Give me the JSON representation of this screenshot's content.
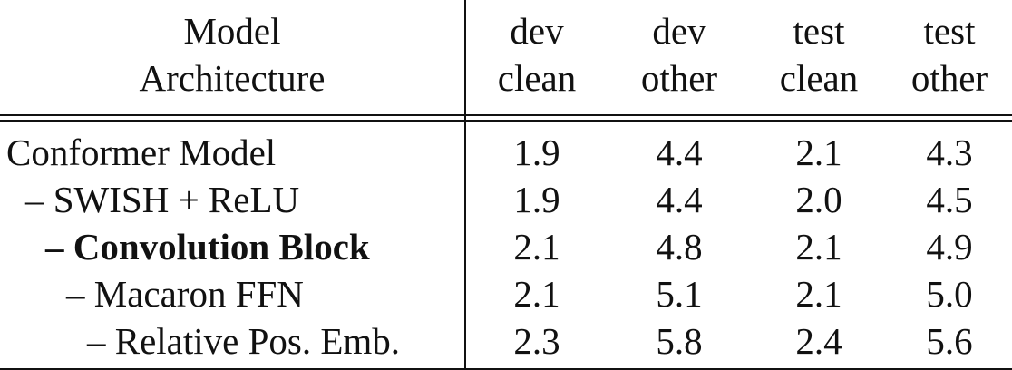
{
  "table": {
    "headers": [
      {
        "line1": "Model",
        "line2": "Architecture"
      },
      {
        "line1": "dev",
        "line2": "clean"
      },
      {
        "line1": "dev",
        "line2": "other"
      },
      {
        "line1": "test",
        "line2": "clean"
      },
      {
        "line1": "test",
        "line2": "other"
      }
    ],
    "rows": [
      {
        "name": "Conformer Model",
        "bold": false,
        "values": [
          "1.9",
          "4.4",
          "2.1",
          "4.3"
        ]
      },
      {
        "name": "– SWISH + ReLU",
        "bold": false,
        "values": [
          "1.9",
          "4.4",
          "2.0",
          "4.5"
        ]
      },
      {
        "name": "– Convolution Block",
        "bold": true,
        "values": [
          "2.1",
          "4.8",
          "2.1",
          "4.9"
        ]
      },
      {
        "name": "– Macaron FFN",
        "bold": false,
        "values": [
          "2.1",
          "5.1",
          "2.1",
          "5.0"
        ]
      },
      {
        "name": "– Relative Pos. Emb.",
        "bold": false,
        "values": [
          "2.3",
          "5.8",
          "2.4",
          "5.6"
        ]
      }
    ]
  }
}
